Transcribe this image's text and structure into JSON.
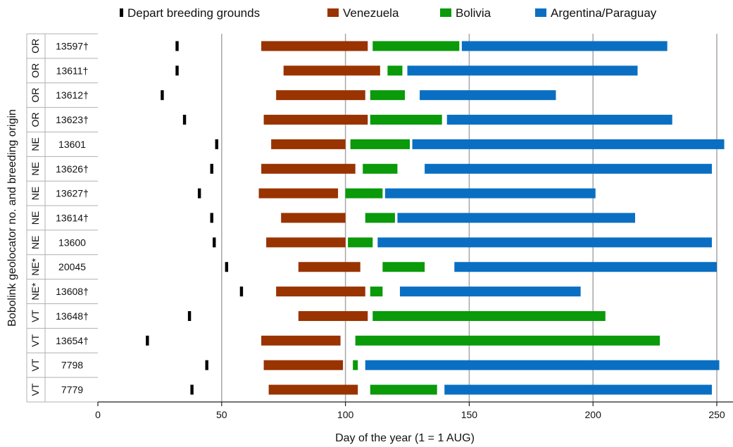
{
  "chart_data": {
    "type": "bar",
    "subtype": "horizontal-gantt",
    "xlabel": "Day of the year (1 = 1 AUG)",
    "ylabel": "Bobolink geolocator no. and breeding origin",
    "xlim": [
      0,
      255
    ],
    "xticks": [
      0,
      50,
      100,
      150,
      200,
      250
    ],
    "grid": "vertical",
    "legend_position": "top",
    "legend": [
      {
        "key": "depart",
        "label": "Depart breeding grounds",
        "color": "#000000"
      },
      {
        "key": "venezuela",
        "label": "Venezuela",
        "color": "#993300"
      },
      {
        "key": "bolivia",
        "label": "Bolivia",
        "color": "#0a9a0a"
      },
      {
        "key": "argentina",
        "label": "Argentina/Paraguay",
        "color": "#0a6fc2"
      }
    ],
    "rows": [
      {
        "id": "13597†",
        "origin": "OR",
        "depart": 32,
        "venezuela": [
          66,
          109
        ],
        "bolivia": [
          111,
          146
        ],
        "argentina": [
          147,
          230
        ]
      },
      {
        "id": "13611†",
        "origin": "OR",
        "depart": 32,
        "venezuela": [
          75,
          114
        ],
        "bolivia": [
          117,
          123
        ],
        "argentina": [
          125,
          218
        ]
      },
      {
        "id": "13612†",
        "origin": "OR",
        "depart": 26,
        "venezuela": [
          72,
          108
        ],
        "bolivia": [
          110,
          124
        ],
        "argentina": [
          130,
          185
        ]
      },
      {
        "id": "13623†",
        "origin": "OR",
        "depart": 35,
        "venezuela": [
          67,
          109
        ],
        "bolivia": [
          110,
          139
        ],
        "argentina": [
          141,
          232
        ]
      },
      {
        "id": "13601",
        "origin": "NE",
        "depart": 48,
        "venezuela": [
          70,
          100
        ],
        "bolivia": [
          102,
          126
        ],
        "argentina": [
          127,
          253
        ]
      },
      {
        "id": "13626†",
        "origin": "NE",
        "depart": 46,
        "venezuela": [
          66,
          104
        ],
        "bolivia": [
          107,
          121
        ],
        "argentina": [
          132,
          248
        ]
      },
      {
        "id": "13627†",
        "origin": "NE",
        "depart": 41,
        "venezuela": [
          65,
          97
        ],
        "bolivia": [
          100,
          115
        ],
        "argentina": [
          116,
          201
        ]
      },
      {
        "id": "13614†",
        "origin": "NE",
        "depart": 46,
        "venezuela": [
          74,
          100
        ],
        "bolivia": [
          108,
          120
        ],
        "argentina": [
          121,
          217
        ]
      },
      {
        "id": "13600",
        "origin": "NE",
        "depart": 47,
        "venezuela": [
          68,
          100
        ],
        "bolivia": [
          101,
          111
        ],
        "argentina": [
          113,
          248
        ]
      },
      {
        "id": "20045",
        "origin": "NE*",
        "depart": 52,
        "venezuela": [
          81,
          106
        ],
        "bolivia": [
          115,
          132
        ],
        "argentina": [
          144,
          250
        ]
      },
      {
        "id": "13608†",
        "origin": "NE*",
        "depart": 58,
        "venezuela": [
          72,
          108
        ],
        "bolivia": [
          110,
          115
        ],
        "argentina": [
          122,
          195
        ]
      },
      {
        "id": "13648†",
        "origin": "VT",
        "depart": 37,
        "venezuela": [
          81,
          109
        ],
        "bolivia": [
          111,
          205
        ],
        "argentina": null
      },
      {
        "id": "13654†",
        "origin": "VT",
        "depart": 20,
        "venezuela": [
          66,
          98
        ],
        "bolivia": [
          104,
          227
        ],
        "argentina": null
      },
      {
        "id": "7798",
        "origin": "VT",
        "depart": 44,
        "venezuela": [
          67,
          99
        ],
        "bolivia": [
          103,
          105
        ],
        "argentina": [
          108,
          251
        ]
      },
      {
        "id": "7779",
        "origin": "VT",
        "depart": 38,
        "venezuela": [
          69,
          105
        ],
        "bolivia": [
          110,
          137
        ],
        "argentina": [
          140,
          248
        ]
      }
    ]
  }
}
